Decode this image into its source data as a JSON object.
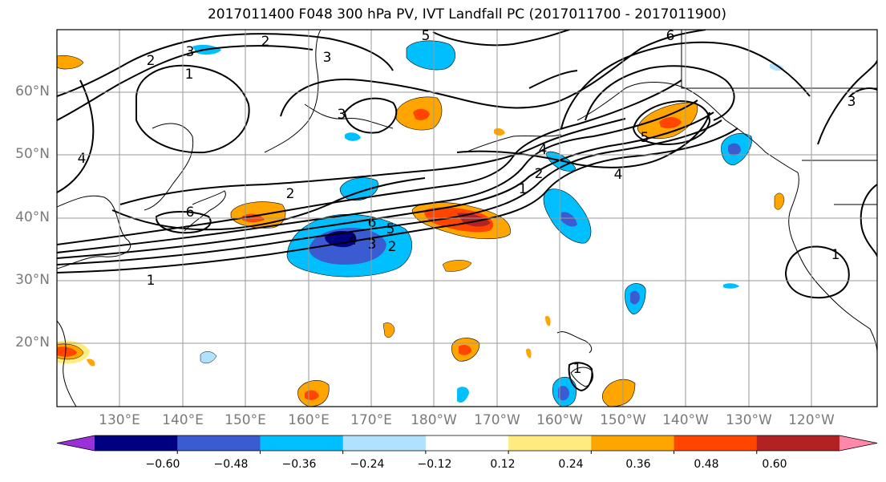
{
  "title": "2017011400 F048 300 hPa PV, IVT Landfall PC (2017011700 - 2017011900)",
  "lat_labels": [
    "60°N",
    "50°N",
    "40°N",
    "30°N",
    "20°N"
  ],
  "lon_labels": [
    "130°E",
    "140°E",
    "150°E",
    "160°E",
    "170°E",
    "180°W",
    "170°W",
    "160°W",
    "150°W",
    "140°W",
    "130°W",
    "120°W"
  ],
  "colorbar": {
    "colors": [
      "#9b30d9",
      "#000080",
      "#3a5bd1",
      "#00bfff",
      "#b0e2ff",
      "#ffffff",
      "#ffeb80",
      "#ffa500",
      "#ff4500",
      "#b22222",
      "#ff88aa"
    ],
    "tick_labels": [
      "−0.60",
      "−0.48",
      "−0.36",
      "−0.24",
      "−0.12",
      "0.12",
      "0.24",
      "0.36",
      "0.48",
      "0.60"
    ]
  },
  "contour_labels": [
    "2",
    "3",
    "1",
    "2",
    "3",
    "5",
    "6",
    "4",
    "3",
    "6",
    "2",
    "1",
    "2",
    "4",
    "6",
    "5",
    "4",
    "3",
    "2",
    "1",
    "4",
    "5",
    "3",
    "1",
    "1"
  ],
  "colors": {
    "grid": "#9a9a9a",
    "contour": "#000000"
  }
}
